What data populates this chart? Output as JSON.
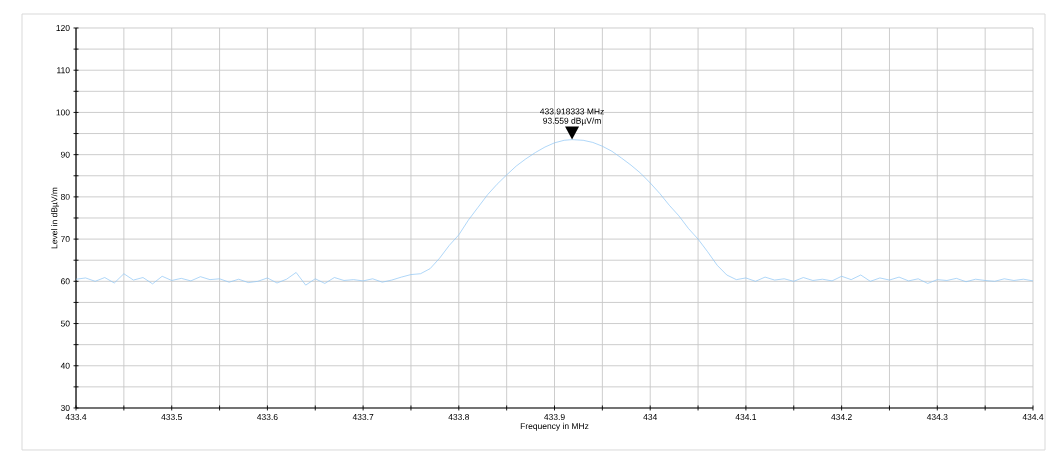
{
  "chart_data": {
    "type": "line",
    "xlabel": "Frequency in MHz",
    "ylabel": "Level in dBµV/m",
    "xlim": [
      433.4,
      434.4
    ],
    "xticks": [
      433.4,
      {
        "value": 433.45,
        "label": null
      },
      433.5,
      {
        "value": 433.55,
        "label": null
      },
      433.6,
      {
        "value": 433.65,
        "label": null
      },
      433.7,
      {
        "value": 433.75,
        "label": null
      },
      433.8,
      {
        "value": 433.85,
        "label": null
      },
      433.9,
      {
        "value": 433.95,
        "label": null
      },
      434,
      {
        "value": 434.05,
        "label": null
      },
      434.1,
      {
        "value": 434.15,
        "label": null
      },
      434.2,
      {
        "value": 434.25,
        "label": null
      },
      434.3,
      {
        "value": 434.35,
        "label": null
      },
      434.4
    ],
    "ylim": [
      30,
      120
    ],
    "yticks": [
      30,
      {
        "value": 35,
        "label": null
      },
      40,
      {
        "value": 45,
        "label": null
      },
      50,
      {
        "value": 55,
        "label": null
      },
      60,
      {
        "value": 65,
        "label": null
      },
      70,
      {
        "value": 75,
        "label": null
      },
      80,
      {
        "value": 85,
        "label": null
      },
      90,
      {
        "value": 95,
        "label": null
      },
      100,
      {
        "value": 105,
        "label": null
      },
      110,
      {
        "value": 115,
        "label": null
      },
      120
    ],
    "grid": true,
    "color": "#8ec5f5",
    "x": [
      433.4,
      433.41,
      433.42,
      433.43,
      433.44,
      433.45,
      433.46,
      433.47,
      433.48,
      433.49,
      433.5,
      433.51,
      433.52,
      433.53,
      433.54,
      433.55,
      433.56,
      433.57,
      433.58,
      433.59,
      433.6,
      433.61,
      433.62,
      433.63,
      433.64,
      433.65,
      433.66,
      433.67,
      433.68,
      433.69,
      433.7,
      433.71,
      433.72,
      433.73,
      433.74,
      433.75,
      433.76,
      433.77,
      433.78,
      433.79,
      433.8,
      433.81,
      433.82,
      433.83,
      433.84,
      433.85,
      433.86,
      433.87,
      433.88,
      433.89,
      433.9,
      433.91,
      433.918333,
      433.93,
      433.94,
      433.95,
      433.96,
      433.97,
      433.98,
      433.99,
      434.0,
      434.01,
      434.02,
      434.03,
      434.04,
      434.05,
      434.06,
      434.07,
      434.08,
      434.09,
      434.1,
      434.11,
      434.12,
      434.13,
      434.14,
      434.15,
      434.16,
      434.17,
      434.18,
      434.19,
      434.2,
      434.21,
      434.22,
      434.23,
      434.24,
      434.25,
      434.26,
      434.27,
      434.28,
      434.29,
      434.3,
      434.31,
      434.32,
      434.33,
      434.34,
      434.35,
      434.36,
      434.37,
      434.38,
      434.39,
      434.4
    ],
    "values": [
      60.5,
      60.8,
      60.0,
      60.9,
      59.6,
      61.8,
      60.3,
      60.9,
      59.4,
      61.2,
      60.2,
      60.7,
      60.1,
      61.1,
      60.4,
      60.6,
      59.8,
      60.5,
      59.7,
      60.0,
      60.8,
      59.6,
      60.5,
      62.1,
      59.1,
      60.6,
      59.5,
      60.9,
      60.2,
      60.4,
      60.1,
      60.6,
      59.8,
      60.3,
      61.0,
      61.6,
      61.8,
      63.0,
      65.5,
      68.5,
      71.0,
      74.5,
      77.5,
      80.5,
      83.0,
      85.2,
      87.3,
      89.0,
      90.5,
      91.8,
      92.8,
      93.4,
      93.559,
      93.4,
      92.9,
      92.0,
      90.8,
      89.2,
      87.5,
      85.6,
      83.3,
      80.8,
      78.0,
      75.5,
      72.5,
      70.0,
      67.0,
      63.8,
      61.5,
      60.4,
      60.8,
      60.0,
      61.0,
      60.3,
      60.6,
      60.0,
      60.9,
      60.2,
      60.5,
      60.1,
      61.2,
      60.4,
      61.5,
      60.0,
      60.8,
      60.3,
      61.0,
      60.1,
      60.6,
      59.5,
      60.4,
      60.2,
      60.7,
      59.9,
      60.5,
      60.2,
      60.0,
      60.6,
      60.2,
      60.5,
      60.1
    ],
    "annotations": [
      {
        "text": "433.918333 MHz",
        "x": 433.918333,
        "y": 93.559
      },
      {
        "text": "93.559 dBµV/m",
        "x": 433.918333,
        "y": 93.559
      }
    ]
  }
}
